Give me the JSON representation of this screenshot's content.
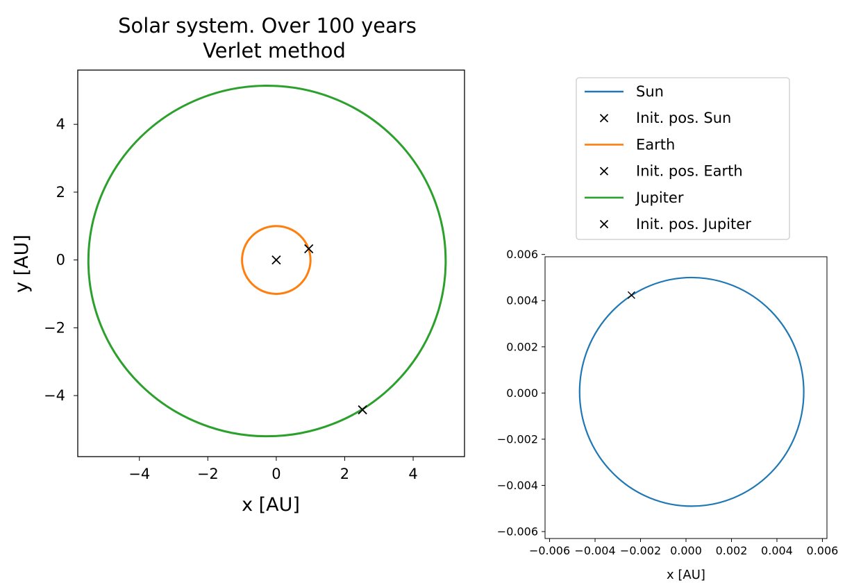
{
  "chart_data": [
    {
      "type": "line",
      "title": "Solar system. Over 100 years",
      "subtitle": "Verlet method",
      "xlabel": "x [AU]",
      "ylabel": "y [AU]",
      "xlim": [
        -5.8,
        5.5
      ],
      "ylim": [
        -5.8,
        5.6
      ],
      "xticks": [
        -4,
        -2,
        0,
        2,
        4
      ],
      "yticks": [
        -4,
        -2,
        0,
        2,
        4
      ],
      "xtick_labels": [
        "−4",
        "−2",
        "0",
        "2",
        "4"
      ],
      "ytick_labels": [
        "−4",
        "−2",
        "0",
        "2",
        "4"
      ],
      "grid": false,
      "series": [
        {
          "name": "Sun",
          "color": "#1f77b4",
          "shape": "orbit",
          "center": [
            0.0,
            0.0
          ],
          "rx": 0.005,
          "ry": 0.005
        },
        {
          "name": "Earth",
          "color": "#ff7f0e",
          "shape": "orbit",
          "center": [
            0.0,
            0.0
          ],
          "rx": 1.0,
          "ry": 1.0
        },
        {
          "name": "Jupiter",
          "color": "#2ca02c",
          "shape": "orbit",
          "center": [
            -0.27,
            -0.03
          ],
          "rx": 5.22,
          "ry": 5.17
        }
      ],
      "markers": [
        {
          "name": "Init. pos. Sun",
          "x": 0.0,
          "y": 0.0,
          "color": "#000000",
          "symbol": "x"
        },
        {
          "name": "Init. pos. Earth",
          "x": 0.95,
          "y": 0.33,
          "color": "#000000",
          "symbol": "x"
        },
        {
          "name": "Init. pos. Jupiter",
          "x": 2.52,
          "y": -4.42,
          "color": "#000000",
          "symbol": "x"
        }
      ]
    },
    {
      "type": "line",
      "title": "",
      "xlabel": "x [AU]",
      "ylabel": "",
      "xlim": [
        -0.0062,
        0.0062
      ],
      "ylim": [
        -0.0063,
        0.0059
      ],
      "xticks": [
        -0.006,
        -0.004,
        -0.002,
        0.0,
        0.002,
        0.004,
        0.006
      ],
      "yticks": [
        -0.006,
        -0.004,
        -0.002,
        0.0,
        0.002,
        0.004,
        0.006
      ],
      "xtick_labels": [
        "−0.006",
        "−0.004",
        "−0.002",
        "0.000",
        "0.002",
        "0.004",
        "0.006"
      ],
      "ytick_labels": [
        "−0.006",
        "−0.004",
        "−0.002",
        "0.000",
        "0.002",
        "0.004",
        "0.006"
      ],
      "grid": false,
      "series": [
        {
          "name": "Sun",
          "color": "#1f77b4",
          "shape": "orbit",
          "center": [
            0.00025,
            5e-05
          ],
          "rx": 0.00493,
          "ry": 0.00495
        }
      ],
      "markers": [
        {
          "name": "Init. pos. Sun",
          "x": -0.0024,
          "y": 0.00424,
          "color": "#000000",
          "symbol": "x"
        }
      ]
    }
  ],
  "legend": {
    "placement": "top-right",
    "entries": [
      {
        "label": "Sun",
        "kind": "line",
        "color": "#1f77b4"
      },
      {
        "label": "Init. pos. Sun",
        "kind": "x",
        "color": "#000000"
      },
      {
        "label": "Earth",
        "kind": "line",
        "color": "#ff7f0e"
      },
      {
        "label": "Init. pos. Earth",
        "kind": "x",
        "color": "#000000"
      },
      {
        "label": "Jupiter",
        "kind": "line",
        "color": "#2ca02c"
      },
      {
        "label": "Init. pos. Jupiter",
        "kind": "x",
        "color": "#000000"
      }
    ]
  }
}
